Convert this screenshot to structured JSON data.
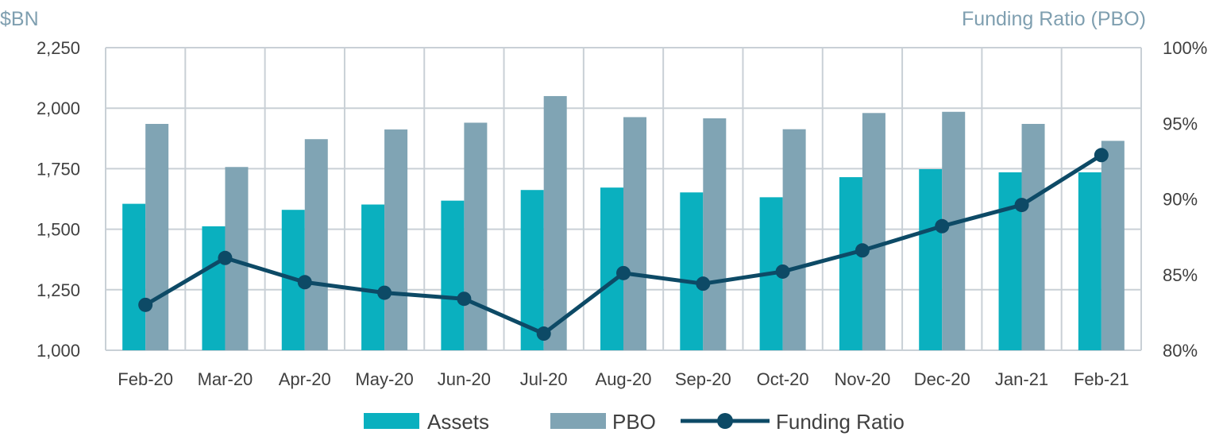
{
  "chart_data": {
    "type": "bar",
    "categories": [
      "Feb-20",
      "Mar-20",
      "Apr-20",
      "May-20",
      "Jun-20",
      "Jul-20",
      "Aug-20",
      "Sep-20",
      "Oct-20",
      "Nov-20",
      "Dec-20",
      "Jan-21",
      "Feb-21"
    ],
    "series": [
      {
        "name": "Assets",
        "type": "bar",
        "axis": "left",
        "color": "#0ab0bf",
        "values": [
          1605,
          1512,
          1580,
          1602,
          1618,
          1662,
          1672,
          1652,
          1632,
          1715,
          1748,
          1735,
          1735
        ]
      },
      {
        "name": "PBO",
        "type": "bar",
        "axis": "left",
        "color": "#80a4b4",
        "values": [
          1935,
          1757,
          1872,
          1912,
          1940,
          2050,
          1963,
          1958,
          1913,
          1980,
          1985,
          1935,
          1865
        ]
      },
      {
        "name": "Funding Ratio",
        "type": "line",
        "axis": "right",
        "color": "#0d4a66",
        "values": [
          83.0,
          86.1,
          84.5,
          83.8,
          83.4,
          81.1,
          85.1,
          84.4,
          85.2,
          86.6,
          88.2,
          89.6,
          92.9
        ]
      }
    ],
    "ylabel": "$BN",
    "y2label": "Funding Ratio (PBO)",
    "ylim": [
      1000,
      2250
    ],
    "yticks": [
      "1,000",
      "1,250",
      "1,500",
      "1,750",
      "2,000",
      "2,250"
    ],
    "yticks_values": [
      1000,
      1250,
      1500,
      1750,
      2000,
      2250
    ],
    "y2lim": [
      80,
      100
    ],
    "y2ticks": [
      "80%",
      "85%",
      "90%",
      "95%",
      "100%"
    ],
    "y2ticks_values": [
      80,
      85,
      90,
      95,
      100
    ],
    "grid": true,
    "legend": "bottom-center"
  },
  "colors": {
    "assets": "#0ab0bf",
    "pbo": "#80a4b4",
    "funding_ratio": "#0d4a66",
    "grid": "#c9d0d6",
    "tick_text": "#404040",
    "axis_title": "#7f9fb0"
  }
}
